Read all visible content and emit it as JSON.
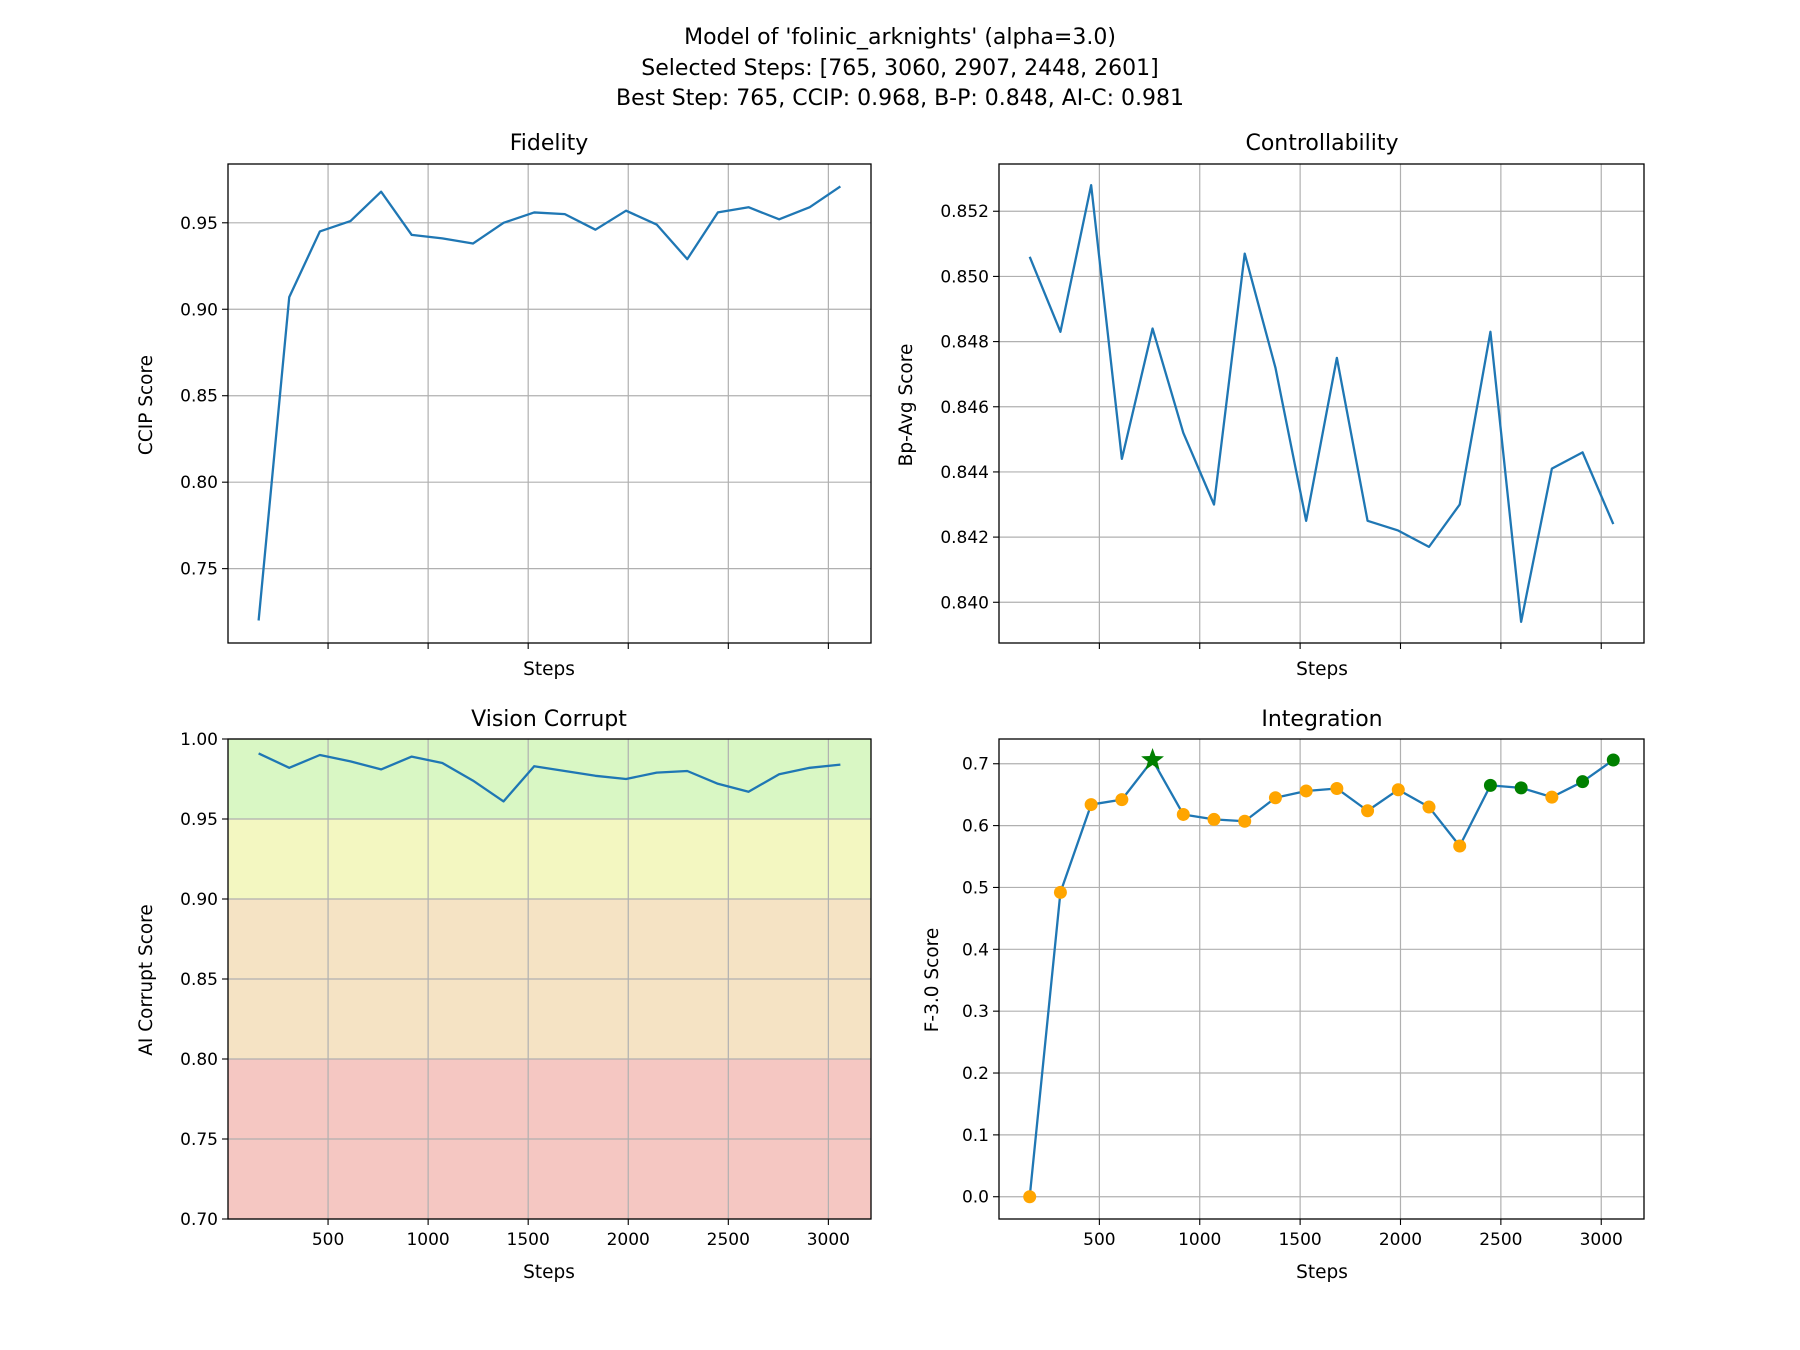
{
  "suptitle": [
    "Model of 'folinic_arknights' (alpha=3.0)",
    "Selected Steps: [765, 3060, 2907, 2448, 2601]",
    "Best Step: 765, CCIP: 0.968, B-P: 0.848, AI-C: 0.981"
  ],
  "colors": {
    "line": "#1f77b4",
    "grid": "#b0b0b0",
    "marker_default": "#ffa500",
    "marker_selected": "#008000",
    "band_green": "#d9f7c4",
    "band_yellow": "#f3f7c1",
    "band_orange": "#f5e3c4",
    "band_red": "#f5c7c2"
  },
  "chart_data": [
    {
      "type": "line",
      "title": "Fidelity",
      "xlabel": "Steps",
      "ylabel": "CCIP Score",
      "xlim": [
        0,
        3213
      ],
      "ylim": [
        0.707,
        0.984
      ],
      "xticks": [
        500,
        1000,
        1500,
        2000,
        2500,
        3000
      ],
      "xticklabels_visible": false,
      "yticks": [
        0.75,
        0.8,
        0.85,
        0.9,
        0.95
      ],
      "ytick_labels": [
        "0.75",
        "0.80",
        "0.85",
        "0.90",
        "0.95"
      ],
      "grid": true,
      "x": [
        153,
        306,
        459,
        612,
        765,
        918,
        1071,
        1224,
        1377,
        1530,
        1683,
        1836,
        1989,
        2142,
        2295,
        2448,
        2601,
        2754,
        2907,
        3060
      ],
      "series": [
        {
          "values": [
            0.72,
            0.907,
            0.945,
            0.951,
            0.968,
            0.943,
            0.941,
            0.938,
            0.95,
            0.956,
            0.955,
            0.946,
            0.957,
            0.949,
            0.929,
            0.956,
            0.959,
            0.952,
            0.959,
            0.971
          ]
        }
      ]
    },
    {
      "type": "line",
      "title": "Controllability",
      "xlabel": "Steps",
      "ylabel": "Bp-Avg Score",
      "xlim": [
        0,
        3213
      ],
      "ylim": [
        0.83875,
        0.85345
      ],
      "xticks": [
        500,
        1000,
        1500,
        2000,
        2500,
        3000
      ],
      "xticklabels_visible": false,
      "yticks": [
        0.84,
        0.842,
        0.844,
        0.846,
        0.848,
        0.85,
        0.852
      ],
      "ytick_labels": [
        "0.840",
        "0.842",
        "0.844",
        "0.846",
        "0.848",
        "0.850",
        "0.852"
      ],
      "grid": true,
      "x": [
        153,
        306,
        459,
        612,
        765,
        918,
        1071,
        1224,
        1377,
        1530,
        1683,
        1836,
        1989,
        2142,
        2295,
        2448,
        2601,
        2754,
        2907,
        3060
      ],
      "series": [
        {
          "values": [
            0.8506,
            0.8483,
            0.8528,
            0.8444,
            0.8484,
            0.8452,
            0.843,
            0.8507,
            0.8472,
            0.8425,
            0.8475,
            0.8425,
            0.8422,
            0.8417,
            0.843,
            0.8483,
            0.8394,
            0.8441,
            0.8446,
            0.8424
          ]
        }
      ]
    },
    {
      "type": "line",
      "title": "Vision Corrupt",
      "xlabel": "Steps",
      "ylabel": "AI Corrupt Score",
      "xlim": [
        0,
        3213
      ],
      "ylim": [
        0.7,
        1.0
      ],
      "xticks": [
        500,
        1000,
        1500,
        2000,
        2500,
        3000
      ],
      "xtick_labels": [
        "500",
        "1000",
        "1500",
        "2000",
        "2500",
        "3000"
      ],
      "yticks": [
        0.7,
        0.75,
        0.8,
        0.85,
        0.9,
        0.95,
        1.0
      ],
      "ytick_labels": [
        "0.70",
        "0.75",
        "0.80",
        "0.85",
        "0.90",
        "0.95",
        "1.00"
      ],
      "grid": true,
      "bands": [
        {
          "from": 0.95,
          "to": 1.0,
          "color": "band_green"
        },
        {
          "from": 0.9,
          "to": 0.95,
          "color": "band_yellow"
        },
        {
          "from": 0.8,
          "to": 0.9,
          "color": "band_orange"
        },
        {
          "from": 0.7,
          "to": 0.8,
          "color": "band_red"
        }
      ],
      "x": [
        153,
        306,
        459,
        612,
        765,
        918,
        1071,
        1224,
        1377,
        1530,
        1683,
        1836,
        1989,
        2142,
        2295,
        2448,
        2601,
        2754,
        2907,
        3060
      ],
      "series": [
        {
          "values": [
            0.991,
            0.982,
            0.99,
            0.986,
            0.981,
            0.989,
            0.985,
            0.974,
            0.961,
            0.983,
            0.98,
            0.977,
            0.975,
            0.979,
            0.98,
            0.972,
            0.967,
            0.978,
            0.982,
            0.984
          ]
        }
      ]
    },
    {
      "type": "line",
      "title": "Integration",
      "xlabel": "Steps",
      "ylabel": "F-3.0 Score",
      "xlim": [
        0,
        3213
      ],
      "ylim": [
        -0.036,
        0.74
      ],
      "xticks": [
        500,
        1000,
        1500,
        2000,
        2500,
        3000
      ],
      "xtick_labels": [
        "500",
        "1000",
        "1500",
        "2000",
        "2500",
        "3000"
      ],
      "yticks": [
        0,
        0.1,
        0.2,
        0.3,
        0.4,
        0.5,
        0.6,
        0.7
      ],
      "ytick_labels": [
        "0.0",
        "0.1",
        "0.2",
        "0.3",
        "0.4",
        "0.5",
        "0.6",
        "0.7"
      ],
      "grid": true,
      "x": [
        153,
        306,
        459,
        612,
        765,
        918,
        1071,
        1224,
        1377,
        1530,
        1683,
        1836,
        1989,
        2142,
        2295,
        2448,
        2601,
        2754,
        2907,
        3060
      ],
      "series": [
        {
          "values": [
            0.0,
            0.492,
            0.634,
            0.642,
            0.706,
            0.618,
            0.61,
            0.607,
            0.645,
            0.656,
            0.66,
            0.624,
            0.658,
            0.63,
            0.567,
            0.665,
            0.661,
            0.646,
            0.671,
            0.706
          ]
        }
      ],
      "selected_x": [
        765,
        3060,
        2907,
        2448,
        2601
      ],
      "best_x": 765
    }
  ]
}
